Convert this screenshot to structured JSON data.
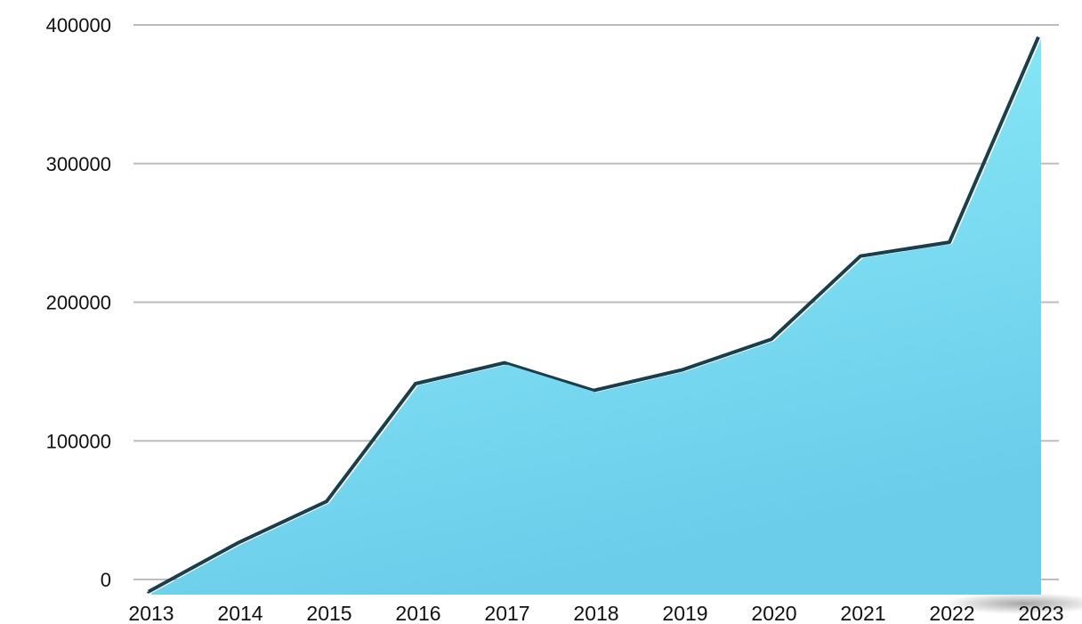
{
  "chart_data": {
    "type": "area",
    "title": "",
    "xlabel": "",
    "ylabel": "",
    "x": [
      "2013",
      "2014",
      "2015",
      "2016",
      "2017",
      "2018",
      "2019",
      "2020",
      "2021",
      "2022",
      "2023"
    ],
    "series": [
      {
        "values": [
          -10000,
          25000,
          55000,
          140000,
          155000,
          135000,
          150000,
          172000,
          232000,
          242000,
          390000
        ]
      }
    ],
    "ylim": [
      0,
      400000
    ],
    "yticks": [
      "0",
      "100000",
      "200000",
      "300000",
      "400000"
    ],
    "grid": true,
    "legend": "none",
    "colors": {
      "fill_top": "#8ff0fa",
      "fill_bottom": "#6ccdeb",
      "edge_shadow": "#173f4d",
      "grid": "#bdbdbd"
    }
  }
}
